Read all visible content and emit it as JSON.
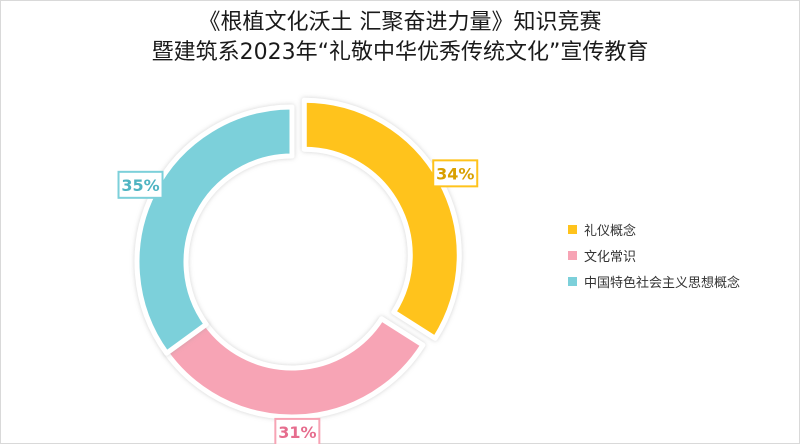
{
  "title": {
    "line1": "《根植文化沃土 汇聚奋进力量》知识竞赛",
    "line2": "暨建筑系2023年“礼敬中华优秀传统文化”宣传教育"
  },
  "chart_data": {
    "type": "pie",
    "donut": true,
    "categories": [
      "礼仪概念",
      "文化常识",
      "中国特色社会主义思想概念"
    ],
    "values": [
      34,
      31,
      35
    ],
    "labels": [
      "34%",
      "31%",
      "35%"
    ],
    "colors": [
      "#FFC31C",
      "#F7A4B5",
      "#7CD0DA"
    ],
    "label_colors": [
      "#D9A000",
      "#E66D8E",
      "#4FB4C2"
    ],
    "legend_position": "right"
  }
}
